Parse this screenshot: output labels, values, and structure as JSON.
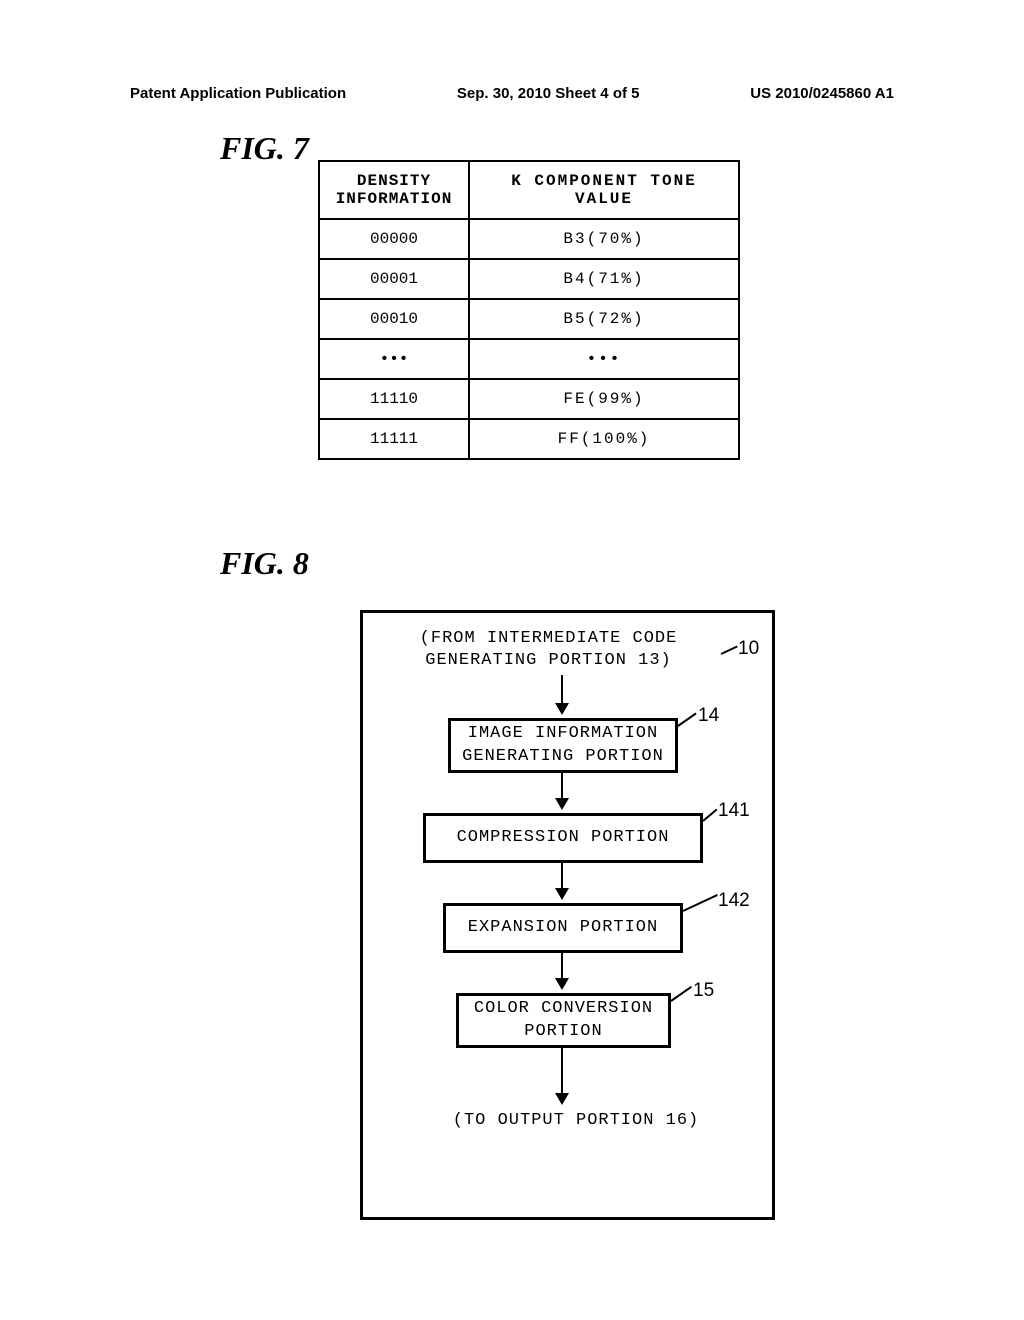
{
  "header": {
    "left": "Patent Application Publication",
    "center": "Sep. 30, 2010  Sheet 4 of 5",
    "right": "US 2010/0245860 A1"
  },
  "fig7": {
    "label": "FIG. 7",
    "table": {
      "headers": {
        "col1": "DENSITY INFORMATION",
        "col2": "K COMPONENT TONE VALUE"
      },
      "rows": [
        {
          "density": "00000",
          "value": "B3(70%)"
        },
        {
          "density": "00001",
          "value": "B4(71%)"
        },
        {
          "density": "00010",
          "value": "B5(72%)"
        },
        {
          "density": "•••",
          "value": "•••"
        },
        {
          "density": "11110",
          "value": "FE(99%)"
        },
        {
          "density": "11111",
          "value": "FF(100%)"
        }
      ]
    }
  },
  "fig8": {
    "label": "FIG. 8",
    "from_text": "(FROM INTERMEDIATE CODE GENERATING PORTION 13)",
    "blocks": {
      "b14": "IMAGE INFORMATION GENERATING PORTION",
      "b141": "COMPRESSION PORTION",
      "b142": "EXPANSION PORTION",
      "b15": "COLOR CONVERSION PORTION"
    },
    "to_text": "(TO OUTPUT PORTION 16)",
    "refs": {
      "r10": "10",
      "r14": "14",
      "r141": "141",
      "r142": "142",
      "r15": "15"
    }
  }
}
